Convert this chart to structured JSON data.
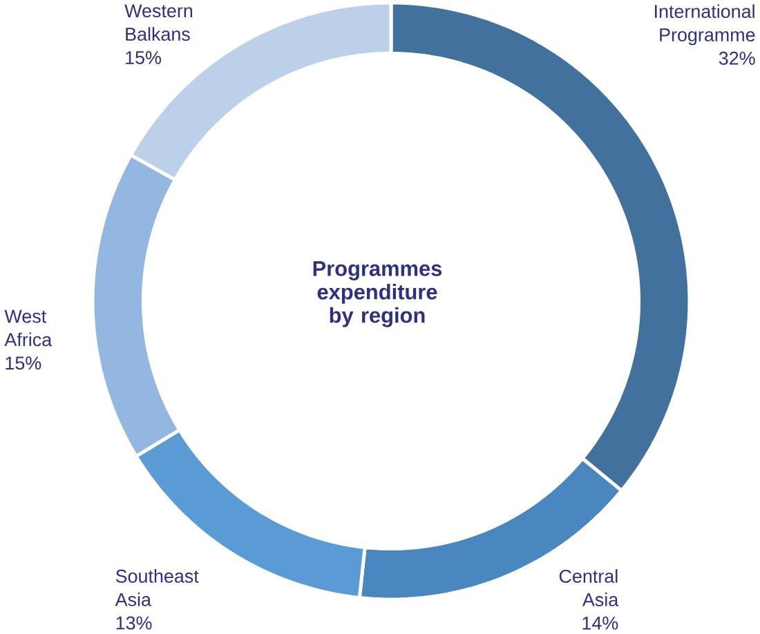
{
  "chart_data": {
    "type": "donut",
    "title": "Programmes expenditure by region",
    "categories": [
      "International Programme",
      "Central Asia",
      "Southeast Asia",
      "West Africa",
      "Western Balkans"
    ],
    "values": [
      32,
      14,
      13,
      15,
      15
    ],
    "value_labels": [
      "32%",
      "14%",
      "13%",
      "15%",
      "15%"
    ],
    "colors": [
      "#41719c",
      "#4a87c0",
      "#5b9bd5",
      "#93b7e0",
      "#bcd0ea"
    ]
  }
}
